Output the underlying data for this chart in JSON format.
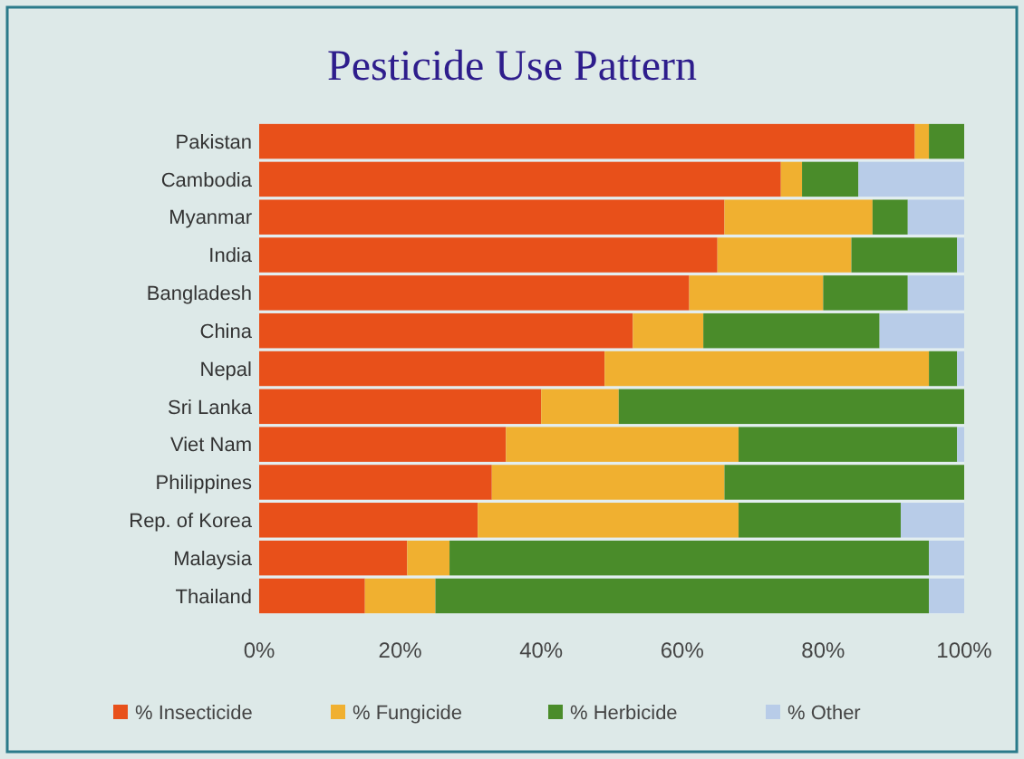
{
  "chart_data": {
    "type": "bar",
    "orientation": "horizontal",
    "stacked": true,
    "title": "Pesticide Use Pattern",
    "categories": [
      "Pakistan",
      "Cambodia",
      "Myanmar",
      "India",
      "Bangladesh",
      "China",
      "Nepal",
      "Sri Lanka",
      "Viet Nam",
      "Philippines",
      "Rep. of Korea",
      "Malaysia",
      "Thailand"
    ],
    "series": [
      {
        "name": "% Insecticide",
        "color": "#e8501a",
        "values": [
          93,
          74,
          66,
          65,
          61,
          53,
          49,
          40,
          35,
          33,
          31,
          21,
          15
        ]
      },
      {
        "name": "% Fungicide",
        "color": "#f0b030",
        "values": [
          2,
          3,
          21,
          19,
          19,
          10,
          46,
          11,
          33,
          33,
          37,
          6,
          10
        ]
      },
      {
        "name": "% Herbicide",
        "color": "#4a8c2a",
        "values": [
          5,
          8,
          5,
          15,
          12,
          25,
          4,
          49,
          31,
          34,
          23,
          68,
          70
        ]
      },
      {
        "name": "% Other",
        "color": "#b8cce8",
        "values": [
          0,
          15,
          8,
          1,
          8,
          12,
          1,
          0,
          1,
          0,
          9,
          5,
          5
        ]
      }
    ],
    "xlim": [
      0,
      100
    ],
    "xticks": [
      {
        "value": 0,
        "label": "0%"
      },
      {
        "value": 20,
        "label": "20%"
      },
      {
        "value": 40,
        "label": "40%"
      },
      {
        "value": 60,
        "label": "60%"
      },
      {
        "value": 80,
        "label": "80%"
      },
      {
        "value": 100,
        "label": "100%"
      }
    ],
    "grid": false,
    "legend": "bottom"
  }
}
